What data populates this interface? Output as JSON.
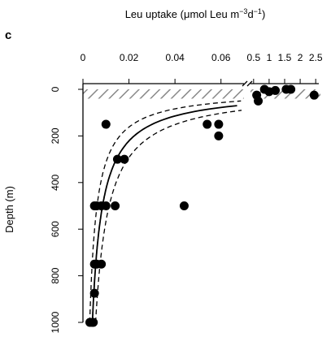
{
  "panel_label": "c",
  "chart_data": {
    "type": "scatter",
    "title": "Leu uptake (μmol Leu m⁻³d⁻¹)",
    "title_parts": {
      "prefix": "Leu uptake (μmol Leu m",
      "exp1": "−3",
      "mid": "d",
      "exp2": "−1",
      "suffix": ")"
    },
    "xlabel": "",
    "ylabel": "Depth (m)",
    "axis_position": "top",
    "y_reversed": true,
    "ylim": [
      0,
      1000
    ],
    "y_ticks": [
      "0",
      "200",
      "400",
      "600",
      "800",
      "1000"
    ],
    "x_segments": [
      {
        "xlim": [
          0,
          0.07
        ],
        "ticks": [
          "0",
          "0.02",
          "0.04",
          "0.06"
        ]
      },
      {
        "xlim": [
          0.4,
          2.6
        ],
        "ticks": [
          "0.5",
          "1",
          "1.5",
          "2",
          "2.5"
        ]
      }
    ],
    "points": [
      {
        "x": 0.003,
        "y": 1000
      },
      {
        "x": 0.004,
        "y": 1000
      },
      {
        "x": 0.0045,
        "y": 1000
      },
      {
        "x": 0.005,
        "y": 875
      },
      {
        "x": 0.005,
        "y": 750
      },
      {
        "x": 0.006,
        "y": 750
      },
      {
        "x": 0.008,
        "y": 750
      },
      {
        "x": 0.005,
        "y": 500
      },
      {
        "x": 0.006,
        "y": 500
      },
      {
        "x": 0.008,
        "y": 500
      },
      {
        "x": 0.01,
        "y": 500
      },
      {
        "x": 0.014,
        "y": 500
      },
      {
        "x": 0.044,
        "y": 500
      },
      {
        "x": 0.015,
        "y": 300
      },
      {
        "x": 0.018,
        "y": 300
      },
      {
        "x": 0.01,
        "y": 150
      },
      {
        "x": 0.054,
        "y": 150
      },
      {
        "x": 0.059,
        "y": 150
      },
      {
        "x": 0.059,
        "y": 200
      },
      {
        "x": 0.6,
        "y": 25
      },
      {
        "x": 0.65,
        "y": 50
      },
      {
        "x": 0.85,
        "y": 0
      },
      {
        "x": 1.0,
        "y": 10
      },
      {
        "x": 1.2,
        "y": 5
      },
      {
        "x": 1.55,
        "y": 0
      },
      {
        "x": 1.7,
        "y": 0
      },
      {
        "x": 2.45,
        "y": 25
      }
    ],
    "fit": {
      "model": "power",
      "a": 5.8,
      "b": 1.05
    },
    "mixed_layer_depth": 40
  }
}
